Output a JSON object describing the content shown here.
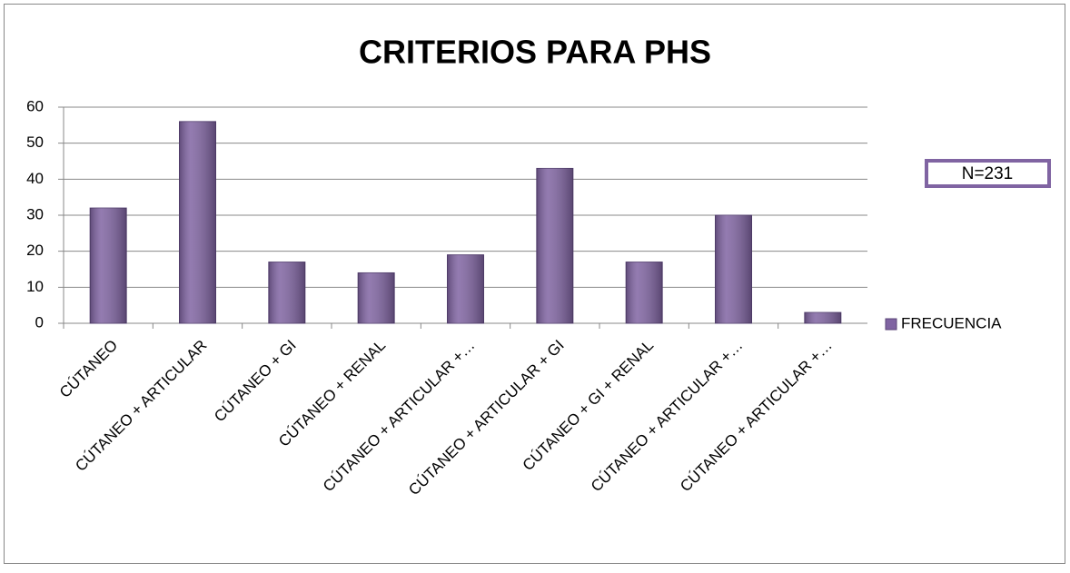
{
  "chart_data": {
    "type": "bar",
    "title": "CRITERIOS PARA PHS",
    "categories": [
      "CÚTANEO",
      "CÚTANEO + ARTICULAR",
      "CÚTANEO + GI",
      "CÚTANEO + RENAL",
      "CÚTANEO + ARTICULAR +…",
      "CÚTANEO + ARTICULAR + GI",
      "CÚTANEO + GI + RENAL",
      "CÚTANEO + ARTICULAR +…",
      "CÚTANEO + ARTICULAR +…"
    ],
    "series": [
      {
        "name": "FRECUENCIA",
        "color": "#8064a2",
        "values": [
          32,
          56,
          17,
          14,
          19,
          43,
          17,
          30,
          3
        ]
      }
    ],
    "ylim": [
      0,
      60
    ],
    "yticks": [
      0,
      10,
      20,
      30,
      40,
      50,
      60
    ],
    "grid": true,
    "legend": "right",
    "annotation": "N=231"
  }
}
